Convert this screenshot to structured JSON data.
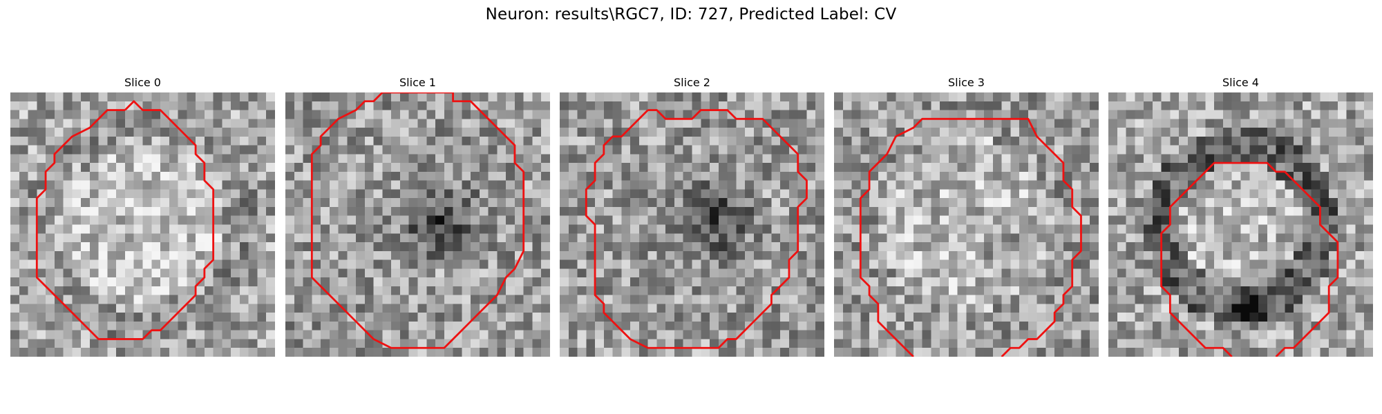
{
  "figure": {
    "title": "Neuron: results\\RGC7, ID: 727, Predicted Label: CV"
  },
  "panels": [
    {
      "title": "Slice 0",
      "contour": [
        [
          13,
          2
        ],
        [
          11,
          2
        ],
        [
          9,
          4
        ],
        [
          7,
          5
        ],
        [
          5,
          7
        ],
        [
          5,
          8
        ],
        [
          4,
          9
        ],
        [
          4,
          11
        ],
        [
          3,
          12
        ],
        [
          3,
          21
        ],
        [
          4,
          22
        ],
        [
          6,
          24
        ],
        [
          7,
          25
        ],
        [
          8,
          26
        ],
        [
          9,
          27
        ],
        [
          10,
          28
        ],
        [
          11,
          28
        ],
        [
          12,
          28
        ],
        [
          13,
          28
        ],
        [
          14,
          28
        ],
        [
          15,
          28
        ],
        [
          16,
          27
        ],
        [
          17,
          27
        ],
        [
          18,
          26
        ],
        [
          19,
          25
        ],
        [
          20,
          24
        ],
        [
          21,
          23
        ],
        [
          21,
          22
        ],
        [
          22,
          21
        ],
        [
          22,
          20
        ],
        [
          23,
          19
        ],
        [
          23,
          11
        ],
        [
          22,
          10
        ],
        [
          22,
          8
        ],
        [
          21,
          7
        ],
        [
          21,
          6
        ],
        [
          20,
          5
        ],
        [
          19,
          4
        ],
        [
          18,
          3
        ],
        [
          17,
          2
        ],
        [
          15,
          2
        ],
        [
          14,
          1
        ]
      ]
    },
    {
      "title": "Slice 1",
      "contour": [
        [
          11,
          0
        ],
        [
          10,
          1
        ],
        [
          9,
          1
        ],
        [
          8,
          2
        ],
        [
          6,
          3
        ],
        [
          5,
          4
        ],
        [
          4,
          5
        ],
        [
          4,
          6
        ],
        [
          3,
          7
        ],
        [
          3,
          8
        ],
        [
          3,
          9
        ],
        [
          3,
          21
        ],
        [
          4,
          22
        ],
        [
          5,
          23
        ],
        [
          6,
          24
        ],
        [
          7,
          25
        ],
        [
          8,
          26
        ],
        [
          9,
          27
        ],
        [
          10,
          28
        ],
        [
          12,
          29
        ],
        [
          18,
          29
        ],
        [
          19,
          28
        ],
        [
          20,
          27
        ],
        [
          21,
          26
        ],
        [
          22,
          25
        ],
        [
          23,
          24
        ],
        [
          24,
          23
        ],
        [
          25,
          21
        ],
        [
          26,
          20
        ],
        [
          27,
          18
        ],
        [
          27,
          9
        ],
        [
          26,
          8
        ],
        [
          26,
          6
        ],
        [
          25,
          5
        ],
        [
          24,
          4
        ],
        [
          23,
          3
        ],
        [
          22,
          2
        ],
        [
          21,
          1
        ],
        [
          19,
          1
        ],
        [
          19,
          0
        ]
      ]
    },
    {
      "title": "Slice 2",
      "contour": [
        [
          10,
          2
        ],
        [
          9,
          3
        ],
        [
          8,
          4
        ],
        [
          7,
          5
        ],
        [
          6,
          5
        ],
        [
          5,
          6
        ],
        [
          5,
          7
        ],
        [
          4,
          8
        ],
        [
          4,
          10
        ],
        [
          3,
          11
        ],
        [
          3,
          14
        ],
        [
          4,
          15
        ],
        [
          4,
          23
        ],
        [
          5,
          24
        ],
        [
          5,
          25
        ],
        [
          6,
          26
        ],
        [
          7,
          27
        ],
        [
          8,
          28
        ],
        [
          10,
          29
        ],
        [
          11,
          29
        ],
        [
          12,
          29
        ],
        [
          18,
          29
        ],
        [
          19,
          28
        ],
        [
          20,
          28
        ],
        [
          21,
          27
        ],
        [
          22,
          26
        ],
        [
          23,
          25
        ],
        [
          24,
          24
        ],
        [
          24,
          23
        ],
        [
          25,
          22
        ],
        [
          26,
          21
        ],
        [
          26,
          19
        ],
        [
          27,
          18
        ],
        [
          27,
          13
        ],
        [
          28,
          12
        ],
        [
          28,
          10
        ],
        [
          27,
          9
        ],
        [
          27,
          7
        ],
        [
          26,
          6
        ],
        [
          25,
          5
        ],
        [
          24,
          4
        ],
        [
          23,
          3
        ],
        [
          22,
          3
        ],
        [
          20,
          3
        ],
        [
          19,
          2
        ],
        [
          16,
          2
        ],
        [
          15,
          3
        ],
        [
          12,
          3
        ],
        [
          11,
          2
        ]
      ]
    },
    {
      "title": "Slice 3",
      "contour": [
        [
          9,
          30
        ],
        [
          8,
          29
        ],
        [
          7,
          28
        ],
        [
          6,
          27
        ],
        [
          5,
          26
        ],
        [
          5,
          24
        ],
        [
          4,
          23
        ],
        [
          4,
          22
        ],
        [
          3,
          21
        ],
        [
          3,
          12
        ],
        [
          4,
          11
        ],
        [
          4,
          9
        ],
        [
          5,
          8
        ],
        [
          6,
          7
        ],
        [
          7,
          5
        ],
        [
          9,
          4
        ],
        [
          10,
          3
        ],
        [
          22,
          3
        ],
        [
          23,
          5
        ],
        [
          24,
          6
        ],
        [
          25,
          7
        ],
        [
          26,
          8
        ],
        [
          26,
          10
        ],
        [
          27,
          11
        ],
        [
          27,
          13
        ],
        [
          28,
          14
        ],
        [
          28,
          18
        ],
        [
          27,
          19
        ],
        [
          27,
          22
        ],
        [
          26,
          23
        ],
        [
          26,
          24
        ],
        [
          25,
          25
        ],
        [
          25,
          26
        ],
        [
          24,
          27
        ],
        [
          23,
          28
        ],
        [
          22,
          28
        ],
        [
          21,
          29
        ],
        [
          20,
          29
        ],
        [
          19,
          30
        ]
      ]
    },
    {
      "title": "Slice 4",
      "contour": [
        [
          14,
          30
        ],
        [
          13,
          29
        ],
        [
          12,
          29
        ],
        [
          11,
          29
        ],
        [
          10,
          28
        ],
        [
          9,
          27
        ],
        [
          8,
          26
        ],
        [
          7,
          25
        ],
        [
          7,
          24
        ],
        [
          7,
          23
        ],
        [
          6,
          22
        ],
        [
          6,
          16
        ],
        [
          7,
          15
        ],
        [
          7,
          13
        ],
        [
          8,
          12
        ],
        [
          9,
          11
        ],
        [
          10,
          10
        ],
        [
          11,
          9
        ],
        [
          12,
          8
        ],
        [
          18,
          8
        ],
        [
          19,
          9
        ],
        [
          20,
          9
        ],
        [
          21,
          10
        ],
        [
          22,
          11
        ],
        [
          23,
          12
        ],
        [
          24,
          13
        ],
        [
          24,
          15
        ],
        [
          25,
          16
        ],
        [
          26,
          17
        ],
        [
          26,
          21
        ],
        [
          25,
          22
        ],
        [
          25,
          25
        ],
        [
          24,
          26
        ],
        [
          23,
          27
        ],
        [
          22,
          28
        ],
        [
          21,
          29
        ],
        [
          20,
          29
        ],
        [
          19,
          30
        ]
      ]
    }
  ],
  "colors": {
    "contour": "#ee1111",
    "background": "#ffffff"
  }
}
